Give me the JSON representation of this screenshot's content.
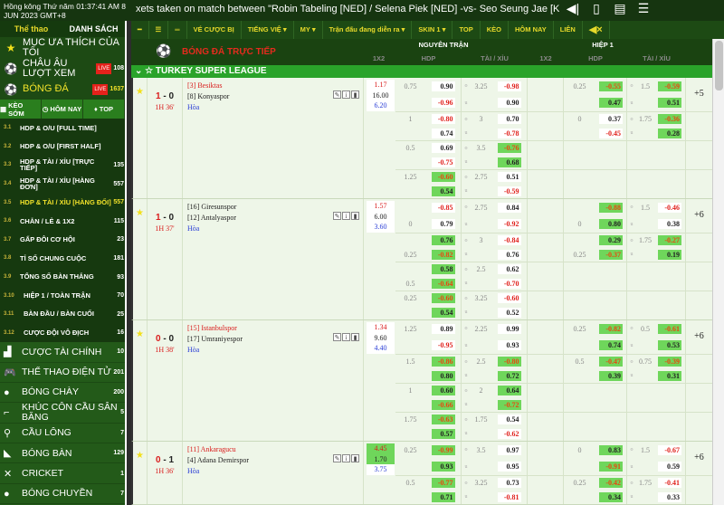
{
  "topbar": {
    "clock": "Hồng kông Thứ năm 01:37:41 AM 8 JUN 2023 GMT+8",
    "ticker": "xets taken on match between \"Robin Tabeling [NED] / Selena Piek [NED] -vs- Seo Seung Jae [KOR] / Chae Yoo Jung [KO",
    "icons": [
      "volume-icon",
      "mobile-icon",
      "document-icon",
      "list-icon"
    ]
  },
  "sidebar": {
    "tabs": [
      "Thể thao",
      "DANH SÁCH"
    ],
    "top_items": [
      {
        "label": "MỤC ƯA THÍCH CỦA TÔI",
        "icon": "star-icon",
        "live": "",
        "count": ""
      },
      {
        "label": "CHÂU ÂU LƯỢT XEM",
        "icon": "soccer-ball-icon",
        "live": "LIVE",
        "count": "108"
      },
      {
        "label": "BÓNG ĐÁ",
        "icon": "soccer-ball-icon",
        "live": "LIVE",
        "count": "1637"
      }
    ],
    "quick": [
      "KÈO SỚM",
      "HÔM NAY",
      "TOP"
    ],
    "sub_items": [
      {
        "num": "3.1",
        "label": "HDP & O/U [FULL TIME]",
        "count": ""
      },
      {
        "num": "3.2",
        "label": "HDP & O/U [FIRST HALF]",
        "count": ""
      },
      {
        "num": "3.3",
        "label": "HDP & TÀI / XỈU [TRỰC TIẾP]",
        "count": "135"
      },
      {
        "num": "3.4",
        "label": "HDP & TÀI / XỈU [HÀNG ĐƠN]",
        "count": "557"
      },
      {
        "num": "3.5",
        "label": "HDP & TÀI / XỈU [HÀNG ĐỐI]",
        "count": "557"
      },
      {
        "num": "3.6",
        "label": "CHẴN / LẺ & 1X2",
        "count": "115"
      },
      {
        "num": "3.7",
        "label": "GẤP ĐÔI CƠ HỘI",
        "count": "23"
      },
      {
        "num": "3.8",
        "label": "TỈ SỐ CHUNG CUỘC",
        "count": "181"
      },
      {
        "num": "3.9",
        "label": "TỔNG SỐ BÀN THẮNG",
        "count": "93"
      },
      {
        "num": "3.10",
        "label": "HIỆP 1 / TOÀN TRẬN",
        "count": "70"
      },
      {
        "num": "3.11",
        "label": "BÀN ĐẦU / BÀN CUỐI",
        "count": "25"
      },
      {
        "num": "3.12",
        "label": "CƯỢC ĐỘI VÔ ĐỊCH",
        "count": "16"
      }
    ],
    "active_sub": 4,
    "sports": [
      {
        "label": "CƯỢC TÀI CHÍNH",
        "icon": "finance-icon",
        "count": "10"
      },
      {
        "label": "THỂ THAO ĐIỆN TỬ",
        "icon": "gamepad-icon",
        "count": "201"
      },
      {
        "label": "BÓNG CHÀY",
        "icon": "baseball-icon",
        "count": "200"
      },
      {
        "label": "KHÚC CÔN CẦU SÂN BĂNG",
        "icon": "hockey-icon",
        "count": "5"
      },
      {
        "label": "CẦU LÔNG",
        "icon": "badminton-icon",
        "count": "7"
      },
      {
        "label": "BÓNG BÀN",
        "icon": "table-tennis-icon",
        "count": "129"
      },
      {
        "label": "CRICKET",
        "icon": "cricket-icon",
        "count": "1"
      },
      {
        "label": "BÓNG CHUYỀN",
        "icon": "volleyball-icon",
        "count": "7"
      },
      {
        "label": "BÓNG NÉM",
        "icon": "handball-icon",
        "count": "11"
      }
    ]
  },
  "toolbar": {
    "items": [
      "VÉ CƯỢC BỊ",
      "TIẾNG VIỆ ▾",
      "MY ▾",
      "Trận đấu đang diễn ra ▾",
      "SKIN 1 ▾",
      "TOP",
      "KÈO",
      "HÔM NAY",
      "LIÊN"
    ]
  },
  "header": {
    "title": "BÓNG ĐÁ TRỰC TIẾP",
    "full": "NGUYÊN TRẬN",
    "half": "HIỆP 1",
    "cols": [
      "1X2",
      "HDP",
      "TÀI / XỈU",
      "1X2",
      "HDP",
      "TÀI / XỈU"
    ]
  },
  "league": "TURKEY SUPER LEAGUE",
  "colors": {
    "highlight": "#6fd65b",
    "negative": "#e0201b",
    "league": "#2aa32a"
  },
  "matches": [
    {
      "score_home": "1",
      "score_away": "0",
      "time": "1H 36'",
      "home": "[3] Besiktas",
      "away": "[8] Konyaspor",
      "draw": "Hòa",
      "fav": "home",
      "x12": [
        [
          "1.17",
          false
        ],
        [
          "16.00",
          false
        ],
        [
          "6.20",
          false
        ]
      ],
      "more": "+5",
      "blocks": [
        {
          "ft_hdp": [
            "0.75",
            "",
            [
              "0.90",
              false
            ],
            [
              "-0.96",
              false
            ]
          ],
          "ft_ou": [
            "3.25",
            [
              "-0.98",
              false
            ],
            [
              "0.90",
              false
            ]
          ],
          "h1_hdp": [
            "0.25",
            "",
            [
              "-0.55",
              true
            ],
            [
              "0.47",
              true
            ]
          ],
          "h1_ou": [
            "1.5",
            [
              "-0.59",
              true
            ],
            [
              "0.51",
              true
            ]
          ]
        },
        {
          "ft_hdp": [
            "1",
            "",
            [
              "-0.80",
              false
            ],
            [
              "0.74",
              false
            ]
          ],
          "ft_ou": [
            "3",
            [
              "0.70",
              false
            ],
            [
              "-0.78",
              false
            ]
          ],
          "h1_hdp": [
            "0",
            "",
            [
              "0.37",
              false
            ],
            [
              "-0.45",
              false
            ]
          ],
          "h1_ou": [
            "1.75",
            [
              "-0.36",
              true
            ],
            [
              "0.28",
              true
            ]
          ]
        },
        {
          "ft_hdp": [
            "0.5",
            "",
            [
              "0.69",
              false
            ],
            [
              "-0.75",
              false
            ]
          ],
          "ft_ou": [
            "3.5",
            [
              "-0.76",
              true
            ],
            [
              "0.68",
              true
            ]
          ]
        },
        {
          "ft_hdp": [
            "1.25",
            "",
            [
              "-0.60",
              true
            ],
            [
              "0.54",
              true
            ]
          ],
          "ft_ou": [
            "2.75",
            [
              "0.51",
              false
            ],
            [
              "-0.59",
              false
            ]
          ]
        }
      ]
    },
    {
      "score_home": "1",
      "score_away": "0",
      "time": "1H 37'",
      "home": "[16] Giresunspor",
      "away": "[12] Antalyaspor",
      "draw": "Hòa",
      "fav": "none",
      "x12": [
        [
          "1.57",
          false
        ],
        [
          "6.00",
          false
        ],
        [
          "3.60",
          false
        ]
      ],
      "more": "+6",
      "blocks": [
        {
          "ft_hdp": [
            "",
            "0",
            [
              "-0.85",
              false
            ],
            [
              "0.79",
              false
            ]
          ],
          "ft_ou": [
            "2.75",
            [
              "0.84",
              false
            ],
            [
              "-0.92",
              false
            ]
          ],
          "h1_hdp": [
            "",
            "0",
            [
              "-0.88",
              true
            ],
            [
              "0.80",
              true
            ]
          ],
          "h1_ou": [
            "1.5",
            [
              "-0.46",
              false
            ],
            [
              "0.38",
              false
            ]
          ]
        },
        {
          "ft_hdp": [
            "",
            "0.25",
            [
              "0.76",
              true
            ],
            [
              "-0.82",
              true
            ]
          ],
          "ft_ou": [
            "3",
            [
              "-0.84",
              false
            ],
            [
              "0.76",
              false
            ]
          ],
          "h1_hdp": [
            "",
            "0.25",
            [
              "0.29",
              true
            ],
            [
              "-0.37",
              true
            ]
          ],
          "h1_ou": [
            "1.75",
            [
              "-0.27",
              true
            ],
            [
              "0.19",
              true
            ]
          ]
        },
        {
          "ft_hdp": [
            "",
            "0.5",
            [
              "0.58",
              true
            ],
            [
              "-0.64",
              true
            ]
          ],
          "ft_ou": [
            "2.5",
            [
              "0.62",
              false
            ],
            [
              "-0.70",
              false
            ]
          ]
        },
        {
          "ft_hdp": [
            "0.25",
            "",
            [
              "-0.60",
              true
            ],
            [
              "0.54",
              true
            ]
          ],
          "ft_ou": [
            "3.25",
            [
              "-0.60",
              false
            ],
            [
              "0.52",
              false
            ]
          ]
        }
      ]
    },
    {
      "score_home": "0",
      "score_away": "0",
      "time": "1H 38'",
      "home": "[15] Istanbulspor",
      "away": "[17] Umraniyespor",
      "draw": "Hòa",
      "fav": "home",
      "x12": [
        [
          "1.34",
          false
        ],
        [
          "9.60",
          false
        ],
        [
          "4.40",
          false
        ]
      ],
      "more": "+6",
      "blocks": [
        {
          "ft_hdp": [
            "1.25",
            "",
            [
              "0.89",
              false
            ],
            [
              "-0.95",
              false
            ]
          ],
          "ft_ou": [
            "2.25",
            [
              "0.99",
              false
            ],
            [
              "0.93",
              false
            ]
          ],
          "h1_hdp": [
            "0.25",
            "",
            [
              "-0.82",
              true
            ],
            [
              "0.74",
              true
            ]
          ],
          "h1_ou": [
            "0.5",
            [
              "-0.61",
              true
            ],
            [
              "0.53",
              true
            ]
          ]
        },
        {
          "ft_hdp": [
            "1.5",
            "",
            [
              "-0.86",
              true
            ],
            [
              "0.80",
              true
            ]
          ],
          "ft_ou": [
            "2.5",
            [
              "-0.80",
              true
            ],
            [
              "0.72",
              true
            ]
          ],
          "h1_hdp": [
            "0.5",
            "",
            [
              "-0.47",
              true
            ],
            [
              "0.39",
              true
            ]
          ],
          "h1_ou": [
            "0.75",
            [
              "-0.39",
              true
            ],
            [
              "0.31",
              true
            ]
          ]
        },
        {
          "ft_hdp": [
            "1",
            "",
            [
              "0.60",
              true
            ],
            [
              "-0.66",
              true
            ]
          ],
          "ft_ou": [
            "2",
            [
              "0.64",
              true
            ],
            [
              "-0.72",
              true
            ]
          ]
        },
        {
          "ft_hdp": [
            "1.75",
            "",
            [
              "-0.63",
              true
            ],
            [
              "0.57",
              true
            ]
          ],
          "ft_ou": [
            "1.75",
            [
              "0.54",
              false
            ],
            [
              "-0.62",
              false
            ]
          ]
        }
      ]
    },
    {
      "score_home": "0",
      "score_away": "1",
      "time": "1H 36'",
      "home": "[11] Ankaragucu",
      "away": "[4] Adana Demirspor",
      "draw": "Hòa",
      "fav": "home",
      "x12": [
        [
          "4.45",
          true
        ],
        [
          "1.70",
          true
        ],
        [
          "3.75",
          false
        ]
      ],
      "more": "+6",
      "blocks": [
        {
          "ft_hdp": [
            "0.25",
            "",
            [
              "-0.99",
              true
            ],
            [
              "0.93",
              true
            ]
          ],
          "ft_ou": [
            "3.5",
            [
              "0.97",
              false
            ],
            [
              "0.95",
              false
            ]
          ],
          "h1_hdp": [
            "0",
            "",
            [
              "0.83",
              true
            ],
            [
              "-0.91",
              true
            ]
          ],
          "h1_ou": [
            "1.5",
            [
              "-0.67",
              false
            ],
            [
              "0.59",
              false
            ]
          ]
        },
        {
          "ft_hdp": [
            "0.5",
            "",
            [
              "-0.77",
              true
            ],
            [
              "0.71",
              true
            ]
          ],
          "ft_ou": [
            "3.25",
            [
              "0.73",
              false
            ],
            [
              "-0.81",
              false
            ]
          ],
          "h1_hdp": [
            "0.25",
            "",
            [
              "-0.42",
              true
            ],
            [
              "0.34",
              true
            ]
          ],
          "h1_ou": [
            "1.75",
            [
              "-0.41",
              false
            ],
            [
              "0.33",
              false
            ]
          ]
        }
      ]
    }
  ]
}
